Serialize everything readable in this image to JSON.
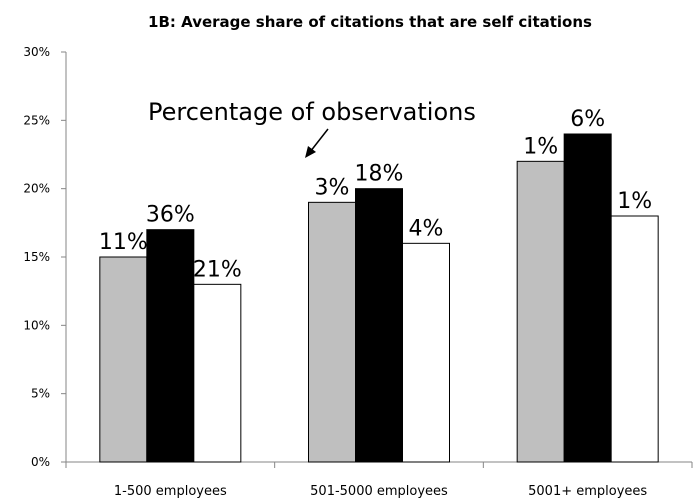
{
  "chart_data": {
    "type": "bar",
    "title": "1B: Average share of citations that are self citations",
    "categories": [
      "1-500 employees",
      "501-5000 employees",
      "5001+ employees"
    ],
    "series": [
      {
        "color": "#bfbfbf",
        "values": [
          15,
          19,
          22
        ],
        "labels": [
          "11%",
          "3%",
          "1%"
        ]
      },
      {
        "color": "#000000",
        "values": [
          17,
          20,
          24
        ],
        "labels": [
          "36%",
          "18%",
          "6%"
        ]
      },
      {
        "color": "#ffffff",
        "values": [
          13,
          16,
          18
        ],
        "labels": [
          "21%",
          "4%",
          "1%"
        ]
      }
    ],
    "ylim": [
      0,
      30
    ],
    "yticks": [
      "0%",
      "5%",
      "10%",
      "15%",
      "20%",
      "25%",
      "30%"
    ],
    "annotation": "Percentage of observations",
    "grid": false,
    "legend": "none"
  }
}
